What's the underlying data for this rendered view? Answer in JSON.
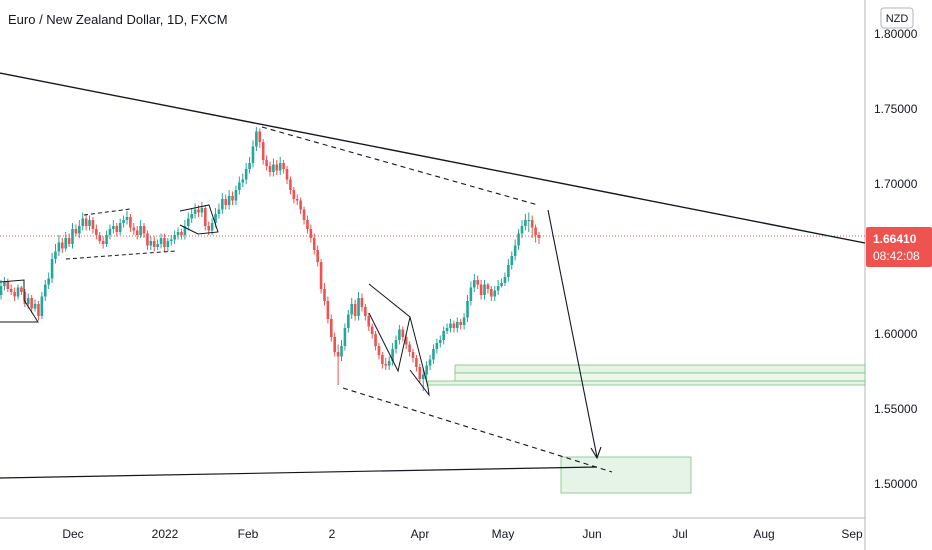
{
  "header": {
    "title": "Euro / New Zealand Dollar, 1D, FXCM"
  },
  "axis": {
    "currency": "NZD"
  },
  "price_tag": {
    "price": "1.66410",
    "countdown": "08:42:08"
  },
  "colors": {
    "up": "#26a69a",
    "down": "#ef5350",
    "price_line": "#ef5350",
    "zone_fill": "#e6f4e7",
    "zone_stroke": "#7cc47f",
    "trend": "#131722"
  },
  "chart_data": {
    "type": "candlestick",
    "title": "Euro / New Zealand Dollar, 1D, FXCM",
    "xlabel": "",
    "ylabel": "",
    "ylim": [
      1.49,
      1.81
    ],
    "x_tick_labels": [
      "Dec",
      "2022",
      "Feb",
      "2",
      "Apr",
      "May",
      "Jun",
      "Jul",
      "Aug",
      "Sep"
    ],
    "y_tick_labels": [
      "1.80000",
      "1.75000",
      "1.70000",
      "1.65000",
      "1.60000",
      "1.55000",
      "1.50000"
    ],
    "y_ticks": [
      1.8,
      1.75,
      1.7,
      1.65,
      1.6,
      1.55,
      1.5
    ],
    "last_price": 1.6641,
    "grid": false,
    "series": [
      {
        "close": [
          1.632,
          1.635,
          1.63,
          1.628,
          1.625,
          1.631,
          1.628,
          1.62,
          1.624,
          1.617,
          1.62,
          1.612,
          1.625,
          1.633,
          1.637,
          1.65,
          1.655,
          1.661,
          1.657,
          1.664,
          1.66,
          1.67,
          1.667,
          1.672,
          1.677,
          1.672,
          1.676,
          1.67,
          1.666,
          1.662,
          1.66,
          1.666,
          1.67,
          1.672,
          1.668,
          1.674,
          1.676,
          1.678,
          1.671,
          1.669,
          1.666,
          1.672,
          1.667,
          1.659,
          1.662,
          1.658,
          1.66,
          1.664,
          1.658,
          1.662,
          1.663,
          1.666,
          1.668,
          1.666,
          1.672,
          1.677,
          1.68,
          1.683,
          1.681,
          1.684,
          1.672,
          1.669,
          1.674,
          1.68,
          1.683,
          1.69,
          1.686,
          1.692,
          1.689,
          1.696,
          1.701,
          1.703,
          1.71,
          1.714,
          1.725,
          1.735,
          1.728,
          1.716,
          1.712,
          1.708,
          1.713,
          1.709,
          1.714,
          1.71,
          1.703,
          1.696,
          1.69,
          1.689,
          1.683,
          1.676,
          1.67,
          1.664,
          1.656,
          1.648,
          1.63,
          1.622,
          1.61,
          1.598,
          1.588,
          1.585,
          1.592,
          1.604,
          1.613,
          1.62,
          1.612,
          1.624,
          1.618,
          1.612,
          1.605,
          1.6,
          1.592,
          1.586,
          1.58,
          1.579,
          1.582,
          1.59,
          1.596,
          1.603,
          1.598,
          1.593,
          1.588,
          1.584,
          1.578,
          1.57,
          1.573,
          1.579,
          1.583,
          1.59,
          1.594,
          1.596,
          1.602,
          1.604,
          1.607,
          1.604,
          1.608,
          1.606,
          1.611,
          1.622,
          1.631,
          1.636,
          1.633,
          1.626,
          1.633,
          1.63,
          1.625,
          1.629,
          1.632,
          1.634,
          1.638,
          1.646,
          1.652,
          1.659,
          1.667,
          1.672,
          1.676,
          1.676,
          1.671,
          1.666,
          1.664
        ],
        "open": [
          1.626,
          1.632,
          1.635,
          1.63,
          1.628,
          1.625,
          1.631,
          1.628,
          1.62,
          1.624,
          1.617,
          1.62,
          1.612,
          1.625,
          1.633,
          1.637,
          1.65,
          1.655,
          1.661,
          1.657,
          1.664,
          1.66,
          1.67,
          1.667,
          1.672,
          1.677,
          1.672,
          1.676,
          1.67,
          1.666,
          1.662,
          1.66,
          1.666,
          1.67,
          1.672,
          1.668,
          1.674,
          1.676,
          1.678,
          1.671,
          1.669,
          1.666,
          1.672,
          1.667,
          1.659,
          1.662,
          1.658,
          1.66,
          1.664,
          1.658,
          1.662,
          1.663,
          1.666,
          1.668,
          1.666,
          1.672,
          1.677,
          1.68,
          1.683,
          1.681,
          1.684,
          1.672,
          1.669,
          1.674,
          1.68,
          1.683,
          1.69,
          1.686,
          1.692,
          1.689,
          1.696,
          1.701,
          1.703,
          1.71,
          1.714,
          1.725,
          1.735,
          1.728,
          1.716,
          1.712,
          1.708,
          1.713,
          1.709,
          1.714,
          1.71,
          1.703,
          1.696,
          1.69,
          1.689,
          1.683,
          1.676,
          1.67,
          1.664,
          1.656,
          1.648,
          1.63,
          1.622,
          1.61,
          1.598,
          1.588,
          1.585,
          1.592,
          1.604,
          1.613,
          1.62,
          1.612,
          1.624,
          1.618,
          1.612,
          1.605,
          1.6,
          1.592,
          1.586,
          1.58,
          1.579,
          1.582,
          1.59,
          1.596,
          1.603,
          1.598,
          1.593,
          1.588,
          1.584,
          1.578,
          1.57,
          1.573,
          1.579,
          1.583,
          1.59,
          1.594,
          1.596,
          1.602,
          1.604,
          1.607,
          1.604,
          1.608,
          1.606,
          1.611,
          1.622,
          1.631,
          1.636,
          1.633,
          1.626,
          1.633,
          1.63,
          1.625,
          1.629,
          1.632,
          1.634,
          1.638,
          1.646,
          1.652,
          1.659,
          1.667,
          1.672,
          1.676,
          1.676,
          1.671,
          1.666
        ],
        "high": [
          1.636,
          1.638,
          1.637,
          1.633,
          1.631,
          1.633,
          1.632,
          1.63,
          1.627,
          1.626,
          1.623,
          1.622,
          1.628,
          1.636,
          1.641,
          1.654,
          1.66,
          1.666,
          1.664,
          1.668,
          1.667,
          1.674,
          1.673,
          1.676,
          1.681,
          1.68,
          1.679,
          1.678,
          1.673,
          1.668,
          1.665,
          1.669,
          1.673,
          1.676,
          1.674,
          1.677,
          1.679,
          1.682,
          1.68,
          1.674,
          1.672,
          1.676,
          1.674,
          1.669,
          1.665,
          1.665,
          1.663,
          1.667,
          1.667,
          1.664,
          1.666,
          1.669,
          1.671,
          1.67,
          1.676,
          1.681,
          1.684,
          1.687,
          1.686,
          1.688,
          1.686,
          1.675,
          1.677,
          1.684,
          1.687,
          1.694,
          1.693,
          1.696,
          1.695,
          1.699,
          1.705,
          1.707,
          1.714,
          1.718,
          1.729,
          1.738,
          1.737,
          1.73,
          1.719,
          1.715,
          1.717,
          1.716,
          1.718,
          1.716,
          1.712,
          1.705,
          1.698,
          1.693,
          1.691,
          1.685,
          1.679,
          1.673,
          1.667,
          1.659,
          1.65,
          1.634,
          1.625,
          1.613,
          1.601,
          1.593,
          1.596,
          1.607,
          1.616,
          1.624,
          1.623,
          1.628,
          1.627,
          1.62,
          1.614,
          1.607,
          1.602,
          1.594,
          1.588,
          1.584,
          1.585,
          1.594,
          1.599,
          1.606,
          1.605,
          1.6,
          1.595,
          1.59,
          1.586,
          1.58,
          1.577,
          1.582,
          1.586,
          1.593,
          1.597,
          1.599,
          1.605,
          1.607,
          1.61,
          1.609,
          1.611,
          1.61,
          1.614,
          1.626,
          1.635,
          1.64,
          1.639,
          1.636,
          1.636,
          1.634,
          1.632,
          1.632,
          1.636,
          1.637,
          1.641,
          1.65,
          1.655,
          1.663,
          1.67,
          1.676,
          1.68,
          1.681,
          1.679,
          1.673,
          1.668
        ],
        "low": [
          1.623,
          1.629,
          1.628,
          1.626,
          1.622,
          1.623,
          1.626,
          1.618,
          1.617,
          1.614,
          1.615,
          1.609,
          1.61,
          1.622,
          1.63,
          1.634,
          1.647,
          1.652,
          1.654,
          1.655,
          1.658,
          1.657,
          1.665,
          1.664,
          1.669,
          1.669,
          1.669,
          1.667,
          1.663,
          1.66,
          1.657,
          1.658,
          1.663,
          1.667,
          1.665,
          1.666,
          1.671,
          1.673,
          1.668,
          1.666,
          1.663,
          1.664,
          1.664,
          1.656,
          1.656,
          1.655,
          1.656,
          1.657,
          1.655,
          1.655,
          1.659,
          1.66,
          1.663,
          1.663,
          1.663,
          1.669,
          1.674,
          1.677,
          1.678,
          1.678,
          1.669,
          1.666,
          1.666,
          1.671,
          1.677,
          1.68,
          1.683,
          1.683,
          1.686,
          1.686,
          1.693,
          1.698,
          1.7,
          1.707,
          1.711,
          1.722,
          1.724,
          1.713,
          1.709,
          1.705,
          1.705,
          1.706,
          1.706,
          1.707,
          1.7,
          1.693,
          1.687,
          1.686,
          1.68,
          1.673,
          1.667,
          1.661,
          1.653,
          1.645,
          1.627,
          1.619,
          1.607,
          1.595,
          1.585,
          1.566,
          1.582,
          1.589,
          1.601,
          1.61,
          1.609,
          1.609,
          1.615,
          1.609,
          1.602,
          1.597,
          1.589,
          1.583,
          1.577,
          1.576,
          1.576,
          1.579,
          1.587,
          1.593,
          1.595,
          1.59,
          1.585,
          1.581,
          1.575,
          1.567,
          1.562,
          1.568,
          1.576,
          1.58,
          1.587,
          1.591,
          1.593,
          1.6,
          1.601,
          1.601,
          1.601,
          1.603,
          1.603,
          1.608,
          1.619,
          1.628,
          1.63,
          1.623,
          1.623,
          1.627,
          1.622,
          1.622,
          1.626,
          1.631,
          1.632,
          1.635,
          1.643,
          1.649,
          1.656,
          1.664,
          1.669,
          1.668,
          1.664,
          1.661,
          1.66
        ]
      }
    ]
  }
}
